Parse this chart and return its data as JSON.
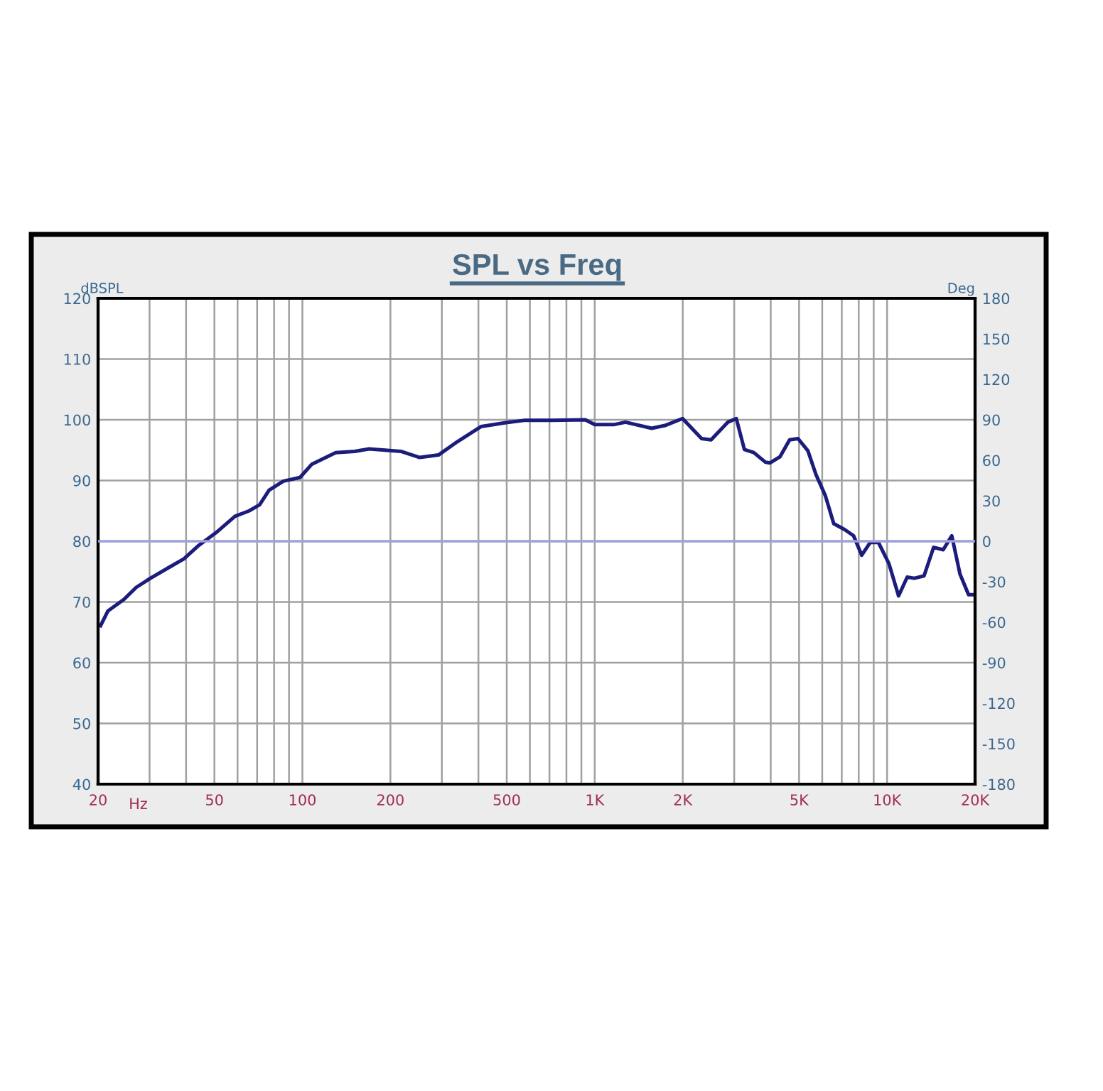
{
  "chart_data": {
    "type": "line",
    "title": "SPL vs Freq",
    "xlabel": "Hz",
    "ylabel": "dBSPL",
    "y2label": "Deg",
    "log": "x",
    "grid": true,
    "legend": false,
    "xlim": [
      20,
      20000
    ],
    "xticks": [
      20,
      50,
      100,
      200,
      500,
      {
        "value": 1000,
        "label": "1K"
      },
      {
        "value": 2000,
        "label": "2K"
      },
      {
        "value": 5000,
        "label": "5K"
      },
      {
        "value": 10000,
        "label": "10K"
      },
      {
        "value": 20000,
        "label": "20K"
      }
    ],
    "ylim": [
      40,
      120
    ],
    "yticks": [
      40,
      50,
      60,
      70,
      80,
      90,
      100,
      110,
      120
    ],
    "y2lim": [
      -180,
      180
    ],
    "y2ticks": [
      -180,
      -150,
      -120,
      -90,
      -60,
      -30,
      0,
      30,
      60,
      90,
      120,
      150,
      180
    ],
    "ref_lines": [
      {
        "axis": "y2",
        "value": 0,
        "label": null,
        "color": "#a0a0dc"
      }
    ],
    "series": [
      {
        "color": "#1c1c7c",
        "x": [
          20.4,
          21.6,
          24.5,
          27.0,
          30.2,
          35.0,
          39.3,
          43.9,
          50.6,
          58.8,
          65.7,
          71.4,
          76.9,
          86.1,
          98.1,
          107.8,
          130,
          151,
          169,
          217,
          252,
          292,
          339,
          409,
          493,
          573,
          715,
          928,
          1000,
          1161,
          1274,
          1566,
          1750,
          1997,
          2320,
          2500,
          2852,
          3050,
          3250,
          3500,
          3840,
          3980,
          4300,
          4640,
          4960,
          5360,
          5710,
          6150,
          6570,
          7170,
          7680,
          8190,
          8760,
          9340,
          10150,
          10950,
          11720,
          12400,
          13380,
          14430,
          15560,
          16650,
          17760,
          19000,
          20000
        ],
        "values": [
          66.1,
          68.5,
          70.4,
          72.4,
          73.9,
          75.7,
          77.1,
          79.2,
          81.4,
          84.1,
          85.0,
          86.0,
          88.4,
          89.9,
          90.5,
          92.7,
          94.6,
          94.8,
          95.2,
          94.8,
          93.8,
          94.2,
          96.4,
          98.9,
          99.5,
          99.9,
          99.9,
          100.0,
          99.2,
          99.2,
          99.6,
          98.6,
          99.1,
          100.2,
          96.9,
          96.7,
          99.6,
          100.2,
          95.1,
          94.6,
          93.0,
          92.9,
          93.9,
          96.7,
          96.9,
          94.9,
          91.0,
          87.5,
          82.9,
          81.9,
          80.9,
          77.7,
          79.8,
          79.8,
          76.3,
          71.0,
          74.1,
          73.9,
          74.3,
          79.0,
          78.6,
          80.9,
          74.6,
          71.2,
          71.2
        ]
      }
    ]
  }
}
